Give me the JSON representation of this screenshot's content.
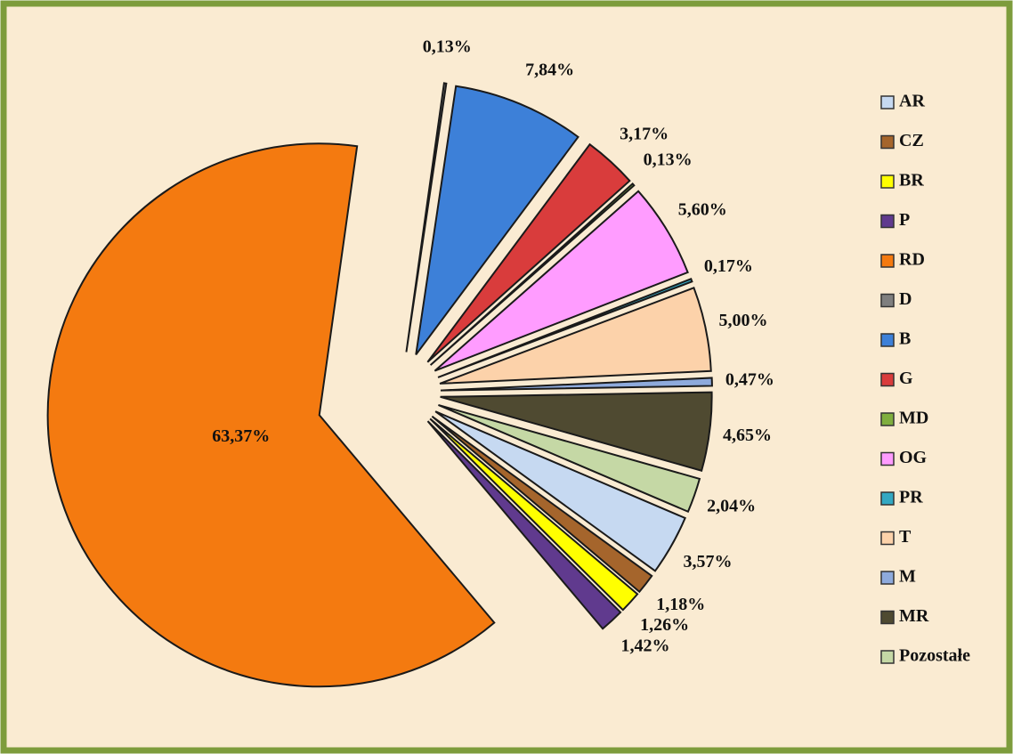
{
  "chart_data": {
    "type": "pie",
    "categories": [
      "AR",
      "CZ",
      "BR",
      "P",
      "RD",
      "D",
      "B",
      "G",
      "MD",
      "OG",
      "PR",
      "T",
      "M",
      "MR",
      "Pozostałe"
    ],
    "values": [
      3.57,
      1.18,
      1.26,
      1.42,
      63.37,
      0.13,
      7.84,
      3.17,
      0.13,
      5.6,
      0.17,
      5.0,
      0.47,
      4.65,
      2.04
    ],
    "value_labels": [
      "3,57%",
      "1,18%",
      "1,26%",
      "1,42%",
      "63,37%",
      "0,13%",
      "7,84%",
      "3,17%",
      "0,13%",
      "5,60%",
      "0,17%",
      "5,00%",
      "0,47%",
      "4,65%",
      "2,04%"
    ],
    "colors": [
      "#c6d9f1",
      "#a5652c",
      "#ffff00",
      "#603a8e",
      "#f47a10",
      "#7f7f7f",
      "#3d80d8",
      "#d93c3c",
      "#7fae3e",
      "#ff9cff",
      "#33a8c2",
      "#fcd2aa",
      "#8eaadc",
      "#4f4a31",
      "#c5d8a5"
    ],
    "legend": "right"
  }
}
